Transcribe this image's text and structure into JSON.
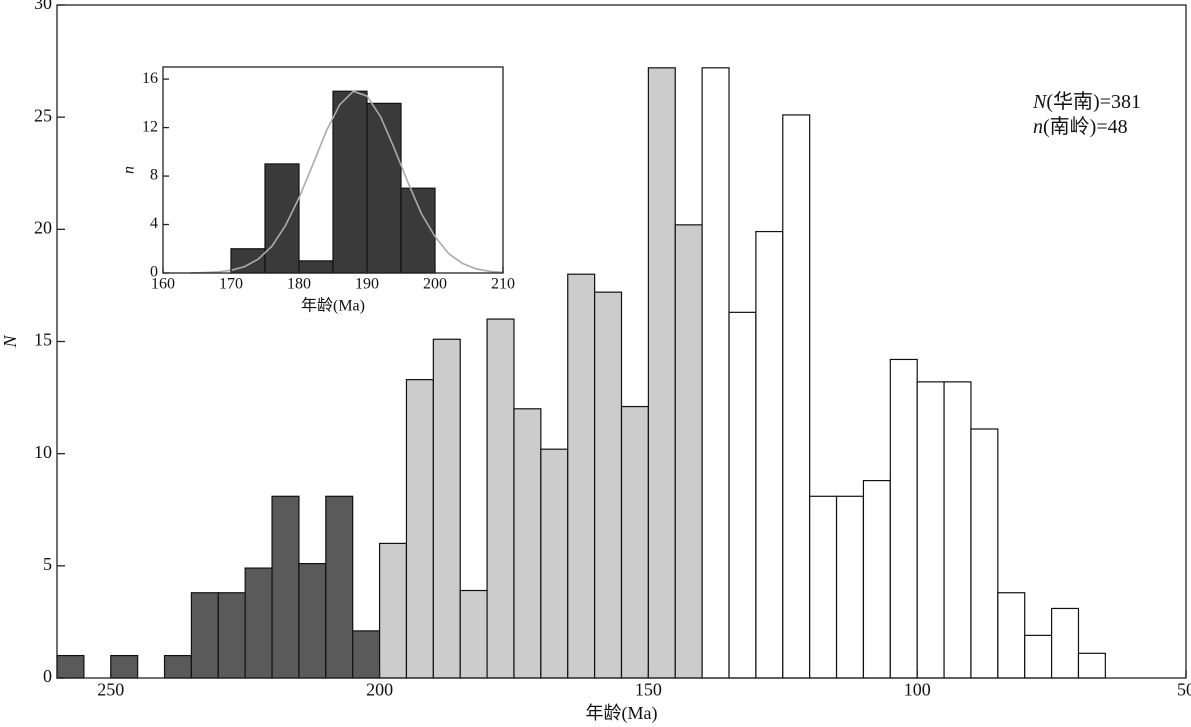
{
  "chart_data": [
    {
      "type": "histogram",
      "xlabel": "年龄(Ma)",
      "ylabel": "N",
      "xlim": [
        260,
        50
      ],
      "ylim": [
        0,
        30
      ],
      "xticks": [
        250,
        200,
        150,
        100,
        50
      ],
      "yticks": [
        0,
        5,
        10,
        15,
        20,
        25,
        30
      ],
      "series": [
        {
          "color": "#5a5a5a",
          "bins": [
            260,
            255,
            250,
            245,
            240,
            235,
            230,
            225,
            220,
            215,
            210,
            205,
            200
          ],
          "values": [
            1,
            0,
            1,
            0,
            1,
            3.8,
            3.8,
            4.9,
            8.1,
            5.1,
            8.1,
            2.1
          ]
        },
        {
          "color": "#cccccc",
          "bins": [
            200,
            195,
            190,
            185,
            180,
            175,
            170,
            165,
            160,
            155,
            150,
            145,
            140
          ],
          "values": [
            6,
            13.3,
            15.1,
            3.9,
            16,
            12,
            10.2,
            18,
            17.2,
            12.1,
            27.2,
            20.2
          ]
        },
        {
          "color": "#ffffff",
          "bins": [
            140,
            135,
            130,
            125,
            120,
            115,
            110,
            105,
            100,
            95,
            90,
            85,
            80,
            75,
            70,
            65
          ],
          "values": [
            27.2,
            16.3,
            19.9,
            25.1,
            8.1,
            8.1,
            8.8,
            14.2,
            13.2,
            13.2,
            11.1,
            3.8,
            1.9,
            3.1,
            1.1
          ]
        }
      ],
      "annotations": [
        {
          "symbol": "N",
          "text": "(华南)=381"
        },
        {
          "symbol": "n",
          "text": "(南岭)=48"
        }
      ]
    },
    {
      "type": "histogram",
      "xlabel": "年龄(Ma)",
      "ylabel": "n",
      "xlim": [
        160,
        210
      ],
      "ylim": [
        0,
        17
      ],
      "xticks": [
        160,
        170,
        180,
        190,
        200,
        210
      ],
      "yticks": [
        0,
        4,
        8,
        12,
        16
      ],
      "series": [
        {
          "color": "#3a3a3a",
          "bins": [
            170,
            175,
            180,
            185,
            190,
            195,
            200
          ],
          "values": [
            2,
            9,
            1,
            15,
            14,
            7
          ]
        }
      ],
      "curve": {
        "color": "#aaaaaa",
        "x": [
          164,
          166,
          168,
          170,
          172,
          174,
          176,
          178,
          180,
          182,
          184,
          186,
          188,
          190,
          192,
          194,
          196,
          198,
          200,
          202,
          204,
          206,
          208,
          210
        ],
        "values": [
          0,
          0.03,
          0.09,
          0.22,
          0.53,
          1.14,
          2.2,
          3.9,
          6.2,
          8.9,
          11.7,
          13.9,
          15,
          14.6,
          12.9,
          10.3,
          7.5,
          4.9,
          3,
          1.6,
          0.8,
          0.35,
          0.14,
          0.05
        ]
      }
    }
  ]
}
